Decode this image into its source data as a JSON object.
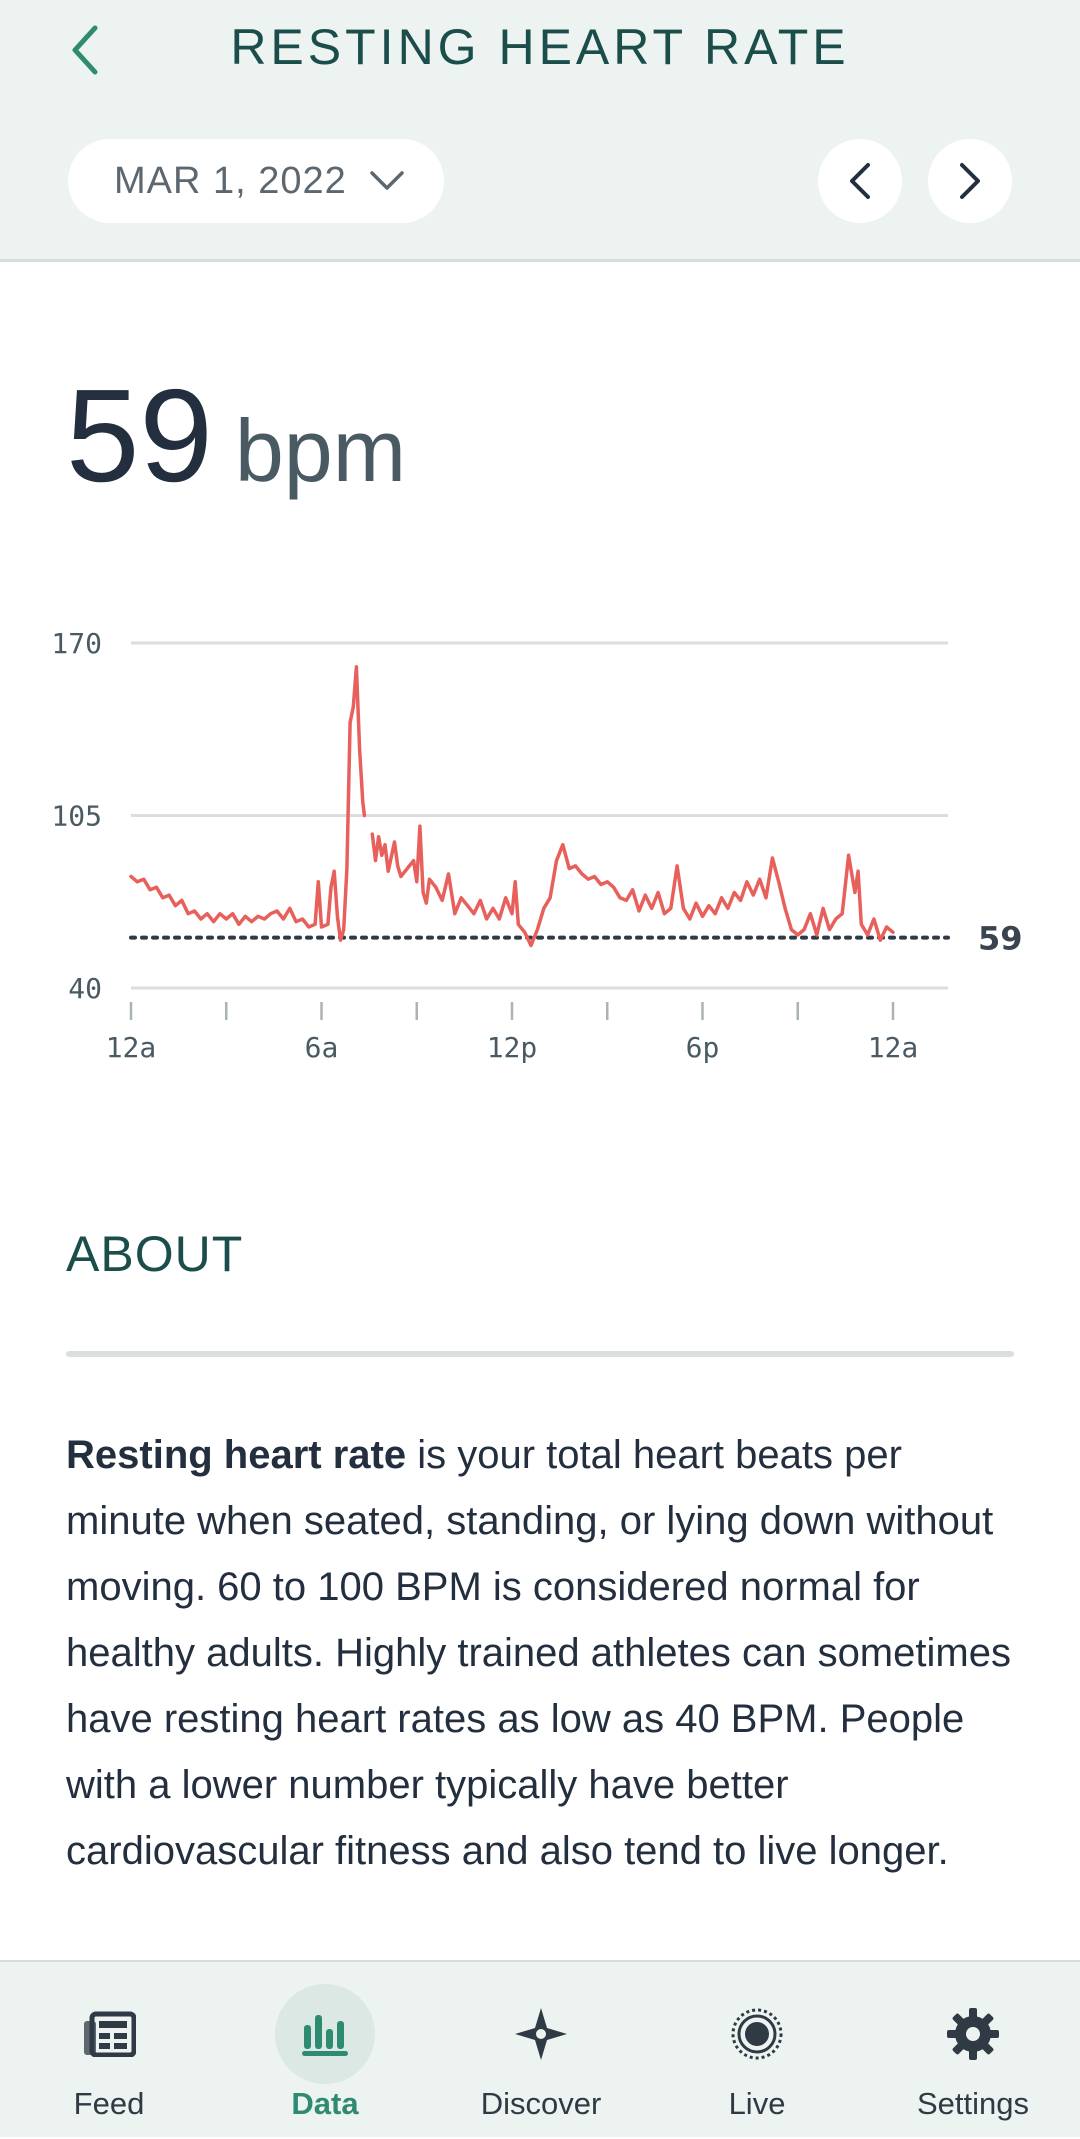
{
  "header": {
    "title": "RESTING HEART RATE",
    "date_label": "MAR 1, 2022"
  },
  "summary": {
    "value": "59",
    "unit": "bpm"
  },
  "chart_data": {
    "type": "line",
    "y_ticks": [
      "170",
      "105",
      "40"
    ],
    "y_tick_values": [
      170,
      105,
      40
    ],
    "ylim": [
      40,
      170
    ],
    "x_tick_labels": [
      "12a",
      "6a",
      "12p",
      "6p",
      "12a"
    ],
    "xlim_hours": [
      0,
      24
    ],
    "reference_line": {
      "value": 59,
      "label": "59",
      "style": "dotted"
    },
    "color": "#e8605c",
    "series": [
      {
        "values": [
          [
            0.0,
            82
          ],
          [
            0.2,
            80
          ],
          [
            0.4,
            81
          ],
          [
            0.6,
            77
          ],
          [
            0.8,
            78
          ],
          [
            1.0,
            74
          ],
          [
            1.2,
            75
          ],
          [
            1.4,
            71
          ],
          [
            1.6,
            73
          ],
          [
            1.8,
            68
          ],
          [
            2.0,
            69
          ],
          [
            2.2,
            66
          ],
          [
            2.4,
            68
          ],
          [
            2.6,
            65
          ],
          [
            2.8,
            68
          ],
          [
            3.0,
            66
          ],
          [
            3.2,
            68
          ],
          [
            3.4,
            64
          ],
          [
            3.6,
            67
          ],
          [
            3.8,
            65
          ],
          [
            4.0,
            67
          ],
          [
            4.2,
            66
          ],
          [
            4.4,
            68
          ],
          [
            4.6,
            69
          ],
          [
            4.8,
            66
          ],
          [
            5.0,
            70
          ],
          [
            5.2,
            65
          ],
          [
            5.4,
            66
          ],
          [
            5.6,
            63
          ],
          [
            5.8,
            64
          ],
          [
            5.9,
            80
          ],
          [
            6.0,
            63
          ],
          [
            6.2,
            64
          ],
          [
            6.3,
            78
          ],
          [
            6.4,
            84
          ],
          [
            6.5,
            67
          ],
          [
            6.6,
            58
          ],
          [
            6.7,
            62
          ],
          [
            6.8,
            85
          ],
          [
            6.9,
            140
          ],
          [
            7.0,
            146
          ],
          [
            7.1,
            161
          ],
          [
            7.2,
            130
          ],
          [
            7.3,
            110
          ],
          [
            7.35,
            105
          ],
          [
            7.6,
            98
          ],
          [
            7.7,
            88
          ],
          [
            7.8,
            97
          ],
          [
            7.9,
            90
          ],
          [
            8.0,
            94
          ],
          [
            8.1,
            84
          ],
          [
            8.3,
            95
          ],
          [
            8.4,
            86
          ],
          [
            8.5,
            82
          ],
          [
            8.7,
            85
          ],
          [
            8.9,
            88
          ],
          [
            9.0,
            80
          ],
          [
            9.1,
            101
          ],
          [
            9.2,
            76
          ],
          [
            9.3,
            72
          ],
          [
            9.4,
            81
          ],
          [
            9.6,
            78
          ],
          [
            9.8,
            73
          ],
          [
            10.0,
            83
          ],
          [
            10.2,
            68
          ],
          [
            10.4,
            74
          ],
          [
            10.6,
            71
          ],
          [
            10.8,
            68
          ],
          [
            11.0,
            73
          ],
          [
            11.2,
            66
          ],
          [
            11.4,
            70
          ],
          [
            11.6,
            66
          ],
          [
            11.8,
            74
          ],
          [
            12.0,
            68
          ],
          [
            12.1,
            80
          ],
          [
            12.2,
            64
          ],
          [
            12.4,
            61
          ],
          [
            12.6,
            56
          ],
          [
            12.8,
            62
          ],
          [
            13.0,
            70
          ],
          [
            13.2,
            74
          ],
          [
            13.4,
            88
          ],
          [
            13.6,
            94
          ],
          [
            13.8,
            85
          ],
          [
            14.0,
            86
          ],
          [
            14.2,
            83
          ],
          [
            14.4,
            81
          ],
          [
            14.6,
            82
          ],
          [
            14.8,
            79
          ],
          [
            15.0,
            80
          ],
          [
            15.2,
            78
          ],
          [
            15.4,
            74
          ],
          [
            15.6,
            73
          ],
          [
            15.8,
            77
          ],
          [
            16.0,
            69
          ],
          [
            16.2,
            75
          ],
          [
            16.4,
            70
          ],
          [
            16.6,
            76
          ],
          [
            16.8,
            68
          ],
          [
            17.0,
            70
          ],
          [
            17.2,
            86
          ],
          [
            17.4,
            70
          ],
          [
            17.6,
            66
          ],
          [
            17.8,
            72
          ],
          [
            18.0,
            67
          ],
          [
            18.2,
            71
          ],
          [
            18.4,
            68
          ],
          [
            18.6,
            74
          ],
          [
            18.8,
            70
          ],
          [
            19.0,
            76
          ],
          [
            19.2,
            73
          ],
          [
            19.4,
            80
          ],
          [
            19.6,
            75
          ],
          [
            19.8,
            81
          ],
          [
            20.0,
            74
          ],
          [
            20.2,
            89
          ],
          [
            20.4,
            80
          ],
          [
            20.6,
            70
          ],
          [
            20.8,
            62
          ],
          [
            21.0,
            60
          ],
          [
            21.2,
            62
          ],
          [
            21.4,
            68
          ],
          [
            21.6,
            60
          ],
          [
            21.8,
            70
          ],
          [
            22.0,
            62
          ],
          [
            22.2,
            66
          ],
          [
            22.4,
            68
          ],
          [
            22.6,
            90
          ],
          [
            22.8,
            76
          ],
          [
            22.9,
            84
          ],
          [
            23.0,
            64
          ],
          [
            23.2,
            60
          ],
          [
            23.4,
            66
          ],
          [
            23.6,
            58
          ],
          [
            23.8,
            63
          ],
          [
            24.0,
            61
          ]
        ]
      }
    ]
  },
  "about": {
    "title": "ABOUT",
    "bold_lead": "Resting heart rate",
    "body": " is your total heart beats per minute when seated, standing, or lying down without moving. 60 to 100 BPM is considered normal for healthy adults. Highly trained athletes can sometimes have resting heart rates as low as 40 BPM. People with a lower number typically have better cardiovascular fitness and also tend to live longer."
  },
  "tabs": [
    {
      "label": "Feed",
      "icon": "feed-icon",
      "active": false
    },
    {
      "label": "Data",
      "icon": "data-bars-icon",
      "active": true
    },
    {
      "label": "Discover",
      "icon": "compass-star-icon",
      "active": false
    },
    {
      "label": "Live",
      "icon": "live-radio-icon",
      "active": false
    },
    {
      "label": "Settings",
      "icon": "gear-icon",
      "active": false
    }
  ],
  "colors": {
    "header_bg": "#edf3f0",
    "accent": "#2e8b72",
    "chart_line": "#e8605c",
    "title_teal": "#1b4d4a"
  }
}
